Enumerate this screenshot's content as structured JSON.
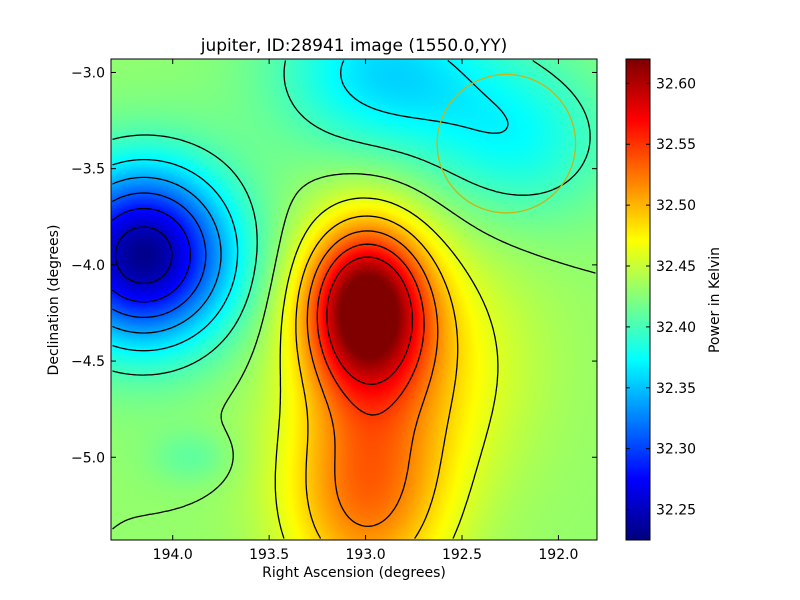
{
  "chart_data": {
    "type": "heatmap",
    "title": "jupiter, ID:28941 image (1550.0,YY)",
    "xlabel": "Right Ascension (degrees)",
    "ylabel": "Declination (degrees)",
    "xlim": [
      194.32,
      191.8
    ],
    "ylim": [
      -5.43,
      -2.93
    ],
    "x_axis_reversed": true,
    "xticks": [
      194.0,
      193.5,
      193.0,
      192.5,
      192.0
    ],
    "xtick_labels": [
      "194.0",
      "193.5",
      "193.0",
      "192.5",
      "192.0"
    ],
    "yticks": [
      -3.0,
      -3.5,
      -4.0,
      -4.5,
      -5.0
    ],
    "ytick_labels": [
      "−3.0",
      "−3.5",
      "−4.0",
      "−4.5",
      "−5.0"
    ],
    "colorbar": {
      "label": "Power in Kelvin",
      "range": [
        32.225,
        32.62
      ],
      "ticks": [
        32.25,
        32.3,
        32.35,
        32.4,
        32.45,
        32.5,
        32.55,
        32.6
      ],
      "tick_labels": [
        "32.25",
        "32.30",
        "32.35",
        "32.40",
        "32.45",
        "32.50",
        "32.55",
        "32.60"
      ],
      "colormap": "jet"
    },
    "field": {
      "background": 32.43,
      "peaks": [
        {
          "ra": 193.0,
          "dec": -4.22,
          "amplitude": 0.19,
          "sigma_ra": 0.22,
          "sigma_dec": 0.3
        },
        {
          "ra": 193.0,
          "dec": -5.2,
          "amplitude": 0.09,
          "sigma_ra": 0.3,
          "sigma_dec": 0.4
        },
        {
          "ra": 192.75,
          "dec": -4.5,
          "amplitude": 0.05,
          "sigma_ra": 0.4,
          "sigma_dec": 0.45
        }
      ],
      "troughs": [
        {
          "ra": 194.15,
          "dec": -3.95,
          "amplitude": 0.2,
          "sigma_ra": 0.32,
          "sigma_dec": 0.32
        },
        {
          "ra": 192.9,
          "dec": -3.0,
          "amplitude": 0.07,
          "sigma_ra": 0.4,
          "sigma_dec": 0.3
        },
        {
          "ra": 192.2,
          "dec": -3.35,
          "amplitude": 0.05,
          "sigma_ra": 0.35,
          "sigma_dec": 0.3
        },
        {
          "ra": 193.9,
          "dec": -5.0,
          "amplitude": 0.02,
          "sigma_ra": 0.15,
          "sigma_dec": 0.1
        }
      ]
    },
    "contour_levels": [
      32.25,
      32.28,
      32.31,
      32.34,
      32.37,
      32.4,
      32.43,
      32.46,
      32.49,
      32.52,
      32.55,
      32.58
    ],
    "beam": {
      "ra": 192.27,
      "dec": -3.37,
      "radius_deg": 0.36,
      "color": "#c8b414"
    }
  }
}
